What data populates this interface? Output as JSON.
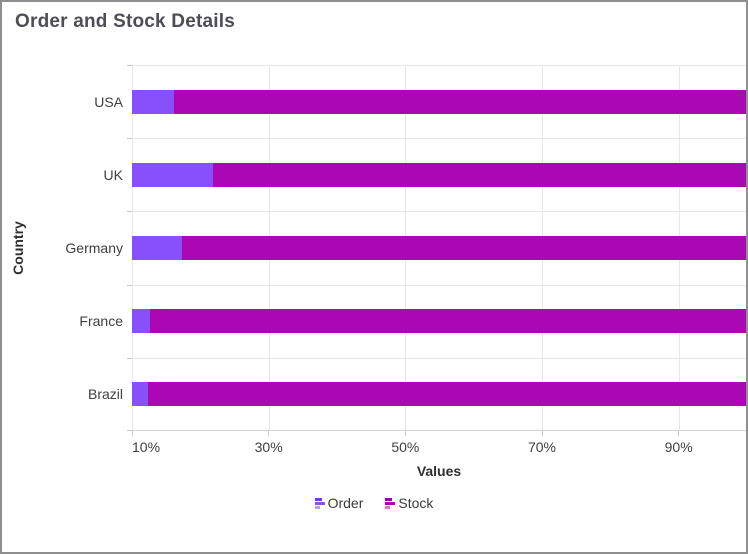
{
  "window": {
    "title": "Order and Stock Details"
  },
  "colors": {
    "border": "#8E8E8E",
    "title_text": "#4D4D56",
    "axis_label": "#404040",
    "axis_title": "#2E2E2E",
    "gridline": "#E7E7E7",
    "axis_line": "#D4D4D4",
    "tick": "#C6C6C6",
    "order_series": "#8650FA",
    "stock_series": "#A908B4"
  },
  "chart_data": {
    "type": "bar",
    "subtype": "stacked-100-horizontal",
    "title": "Order and Stock Details",
    "xlabel": "Values",
    "ylabel": "Country",
    "categories": [
      "USA",
      "UK",
      "Germany",
      "France",
      "Brazil"
    ],
    "series": [
      {
        "name": "Order",
        "values": [
          16.2,
          21.8,
          17.3,
          12.6,
          12.3
        ],
        "color": "#8650FA",
        "icon_colors": [
          "#6B3BDF",
          "#8650FA",
          "#B79CFB"
        ]
      },
      {
        "name": "Stock",
        "values": [
          83.8,
          78.2,
          82.7,
          87.4,
          87.7
        ],
        "color": "#A908B4",
        "icon_colors": [
          "#8D0B98",
          "#A908B4",
          "#DB72E2"
        ]
      }
    ],
    "x_axis": {
      "min": 10,
      "max": 100,
      "ticks": [
        10,
        30,
        50,
        70,
        90
      ],
      "tick_labels": [
        "10%",
        "30%",
        "50%",
        "70%",
        "90%"
      ]
    },
    "legend_position": "bottom",
    "grid": true
  }
}
